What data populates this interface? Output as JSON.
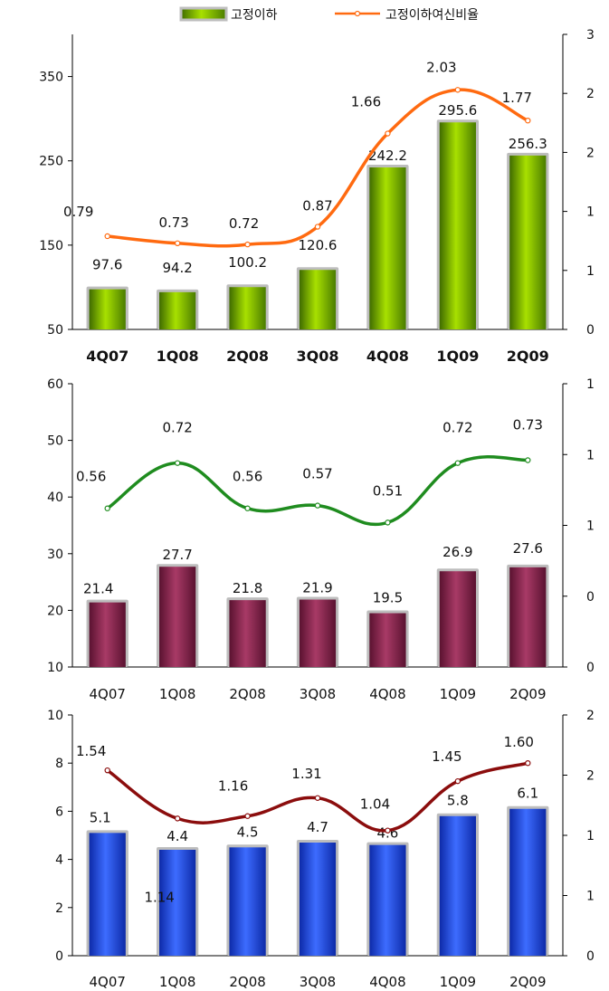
{
  "legend": {
    "bar_label": "고정이하",
    "line_label": "고정이하여신비율",
    "bar_color": "#7fc000",
    "line_color": "#ff6a10"
  },
  "chart_data": [
    {
      "type": "bar",
      "categories": [
        "4Q07",
        "1Q08",
        "2Q08",
        "3Q08",
        "4Q08",
        "1Q09",
        "2Q09"
      ],
      "series": [
        {
          "name": "고정이하",
          "kind": "bar",
          "axis": "left",
          "values": [
            97.6,
            94.2,
            100.2,
            120.6,
            242.2,
            295.6,
            256.3
          ],
          "labels": [
            "97.6",
            "94.2",
            "100.2",
            "120.6",
            "242.2",
            "295.6",
            "256.3"
          ],
          "color": "#6fae00"
        },
        {
          "name": "고정이하여신비율",
          "kind": "line",
          "axis": "right",
          "values": [
            0.79,
            0.73,
            0.72,
            0.87,
            1.66,
            2.03,
            1.77
          ],
          "labels": [
            "0.79",
            "0.73",
            "0.72",
            "0.87",
            "1.66",
            "2.03",
            "1.77"
          ],
          "color": "#ff6a10"
        }
      ],
      "left_axis": {
        "min": 50,
        "max": 400,
        "ticks": [
          50,
          150,
          250,
          350
        ],
        "tick_labels": [
          "50",
          "150",
          "250",
          "350"
        ]
      },
      "right_axis": {
        "min": 0,
        "max": 2.5,
        "ticks": [
          0,
          0.5,
          1,
          1.5,
          2,
          2.5
        ],
        "tick_labels": [
          "0",
          "1",
          "1",
          "2",
          "2",
          "3"
        ]
      },
      "bold_categories": true
    },
    {
      "type": "bar",
      "categories": [
        "4Q07",
        "1Q08",
        "2Q08",
        "3Q08",
        "4Q08",
        "1Q09",
        "2Q09"
      ],
      "series": [
        {
          "kind": "bar",
          "axis": "left",
          "values": [
            21.4,
            27.7,
            21.8,
            21.9,
            19.5,
            26.9,
            27.6
          ],
          "labels": [
            "21.4",
            "27.7",
            "21.8",
            "21.9",
            "19.5",
            "26.9",
            "27.6"
          ],
          "color": "#8a2a4f"
        },
        {
          "kind": "line",
          "axis": "right",
          "values": [
            0.56,
            0.72,
            0.56,
            0.57,
            0.51,
            0.72,
            0.73
          ],
          "labels": [
            "0.56",
            "0.72",
            "0.56",
            "0.57",
            "0.51",
            "0.72",
            "0.73"
          ],
          "color": "#1f8c1f"
        }
      ],
      "left_axis": {
        "min": 10,
        "max": 60,
        "ticks": [
          10,
          20,
          30,
          40,
          50,
          60
        ],
        "tick_labels": [
          "10",
          "20",
          "30",
          "40",
          "50",
          "60"
        ]
      },
      "right_axis": {
        "min": 0,
        "max": 1,
        "ticks": [
          0,
          0.25,
          0.5,
          0.75,
          1
        ],
        "tick_labels": [
          "0",
          "0",
          "1",
          "1",
          "1"
        ]
      },
      "bold_categories": false
    },
    {
      "type": "bar",
      "categories": [
        "4Q07",
        "1Q08",
        "2Q08",
        "3Q08",
        "4Q08",
        "1Q09",
        "2Q09"
      ],
      "series": [
        {
          "kind": "bar",
          "axis": "left",
          "values": [
            5.1,
            4.4,
            4.5,
            4.7,
            4.6,
            5.8,
            6.1
          ],
          "labels": [
            "5.1",
            "4.4",
            "4.5",
            "4.7",
            "4.6",
            "5.8",
            "6.1"
          ],
          "color": "#1f46e6"
        },
        {
          "kind": "line",
          "axis": "right",
          "values": [
            1.54,
            1.14,
            1.16,
            1.31,
            1.04,
            1.45,
            1.6
          ],
          "labels": [
            "1.54",
            "1.14",
            "1.16",
            "1.31",
            "1.04",
            "1.45",
            "1.60"
          ],
          "color": "#8b0d0d"
        }
      ],
      "left_axis": {
        "min": 0,
        "max": 10,
        "ticks": [
          0,
          2,
          4,
          6,
          8,
          10
        ],
        "tick_labels": [
          "0",
          "2",
          "4",
          "6",
          "8",
          "10"
        ]
      },
      "right_axis": {
        "min": 0,
        "max": 2,
        "ticks": [
          0,
          0.5,
          1,
          1.5,
          2
        ],
        "tick_labels": [
          "0",
          "1",
          "1",
          "2",
          "2"
        ]
      },
      "bold_categories": false
    }
  ]
}
